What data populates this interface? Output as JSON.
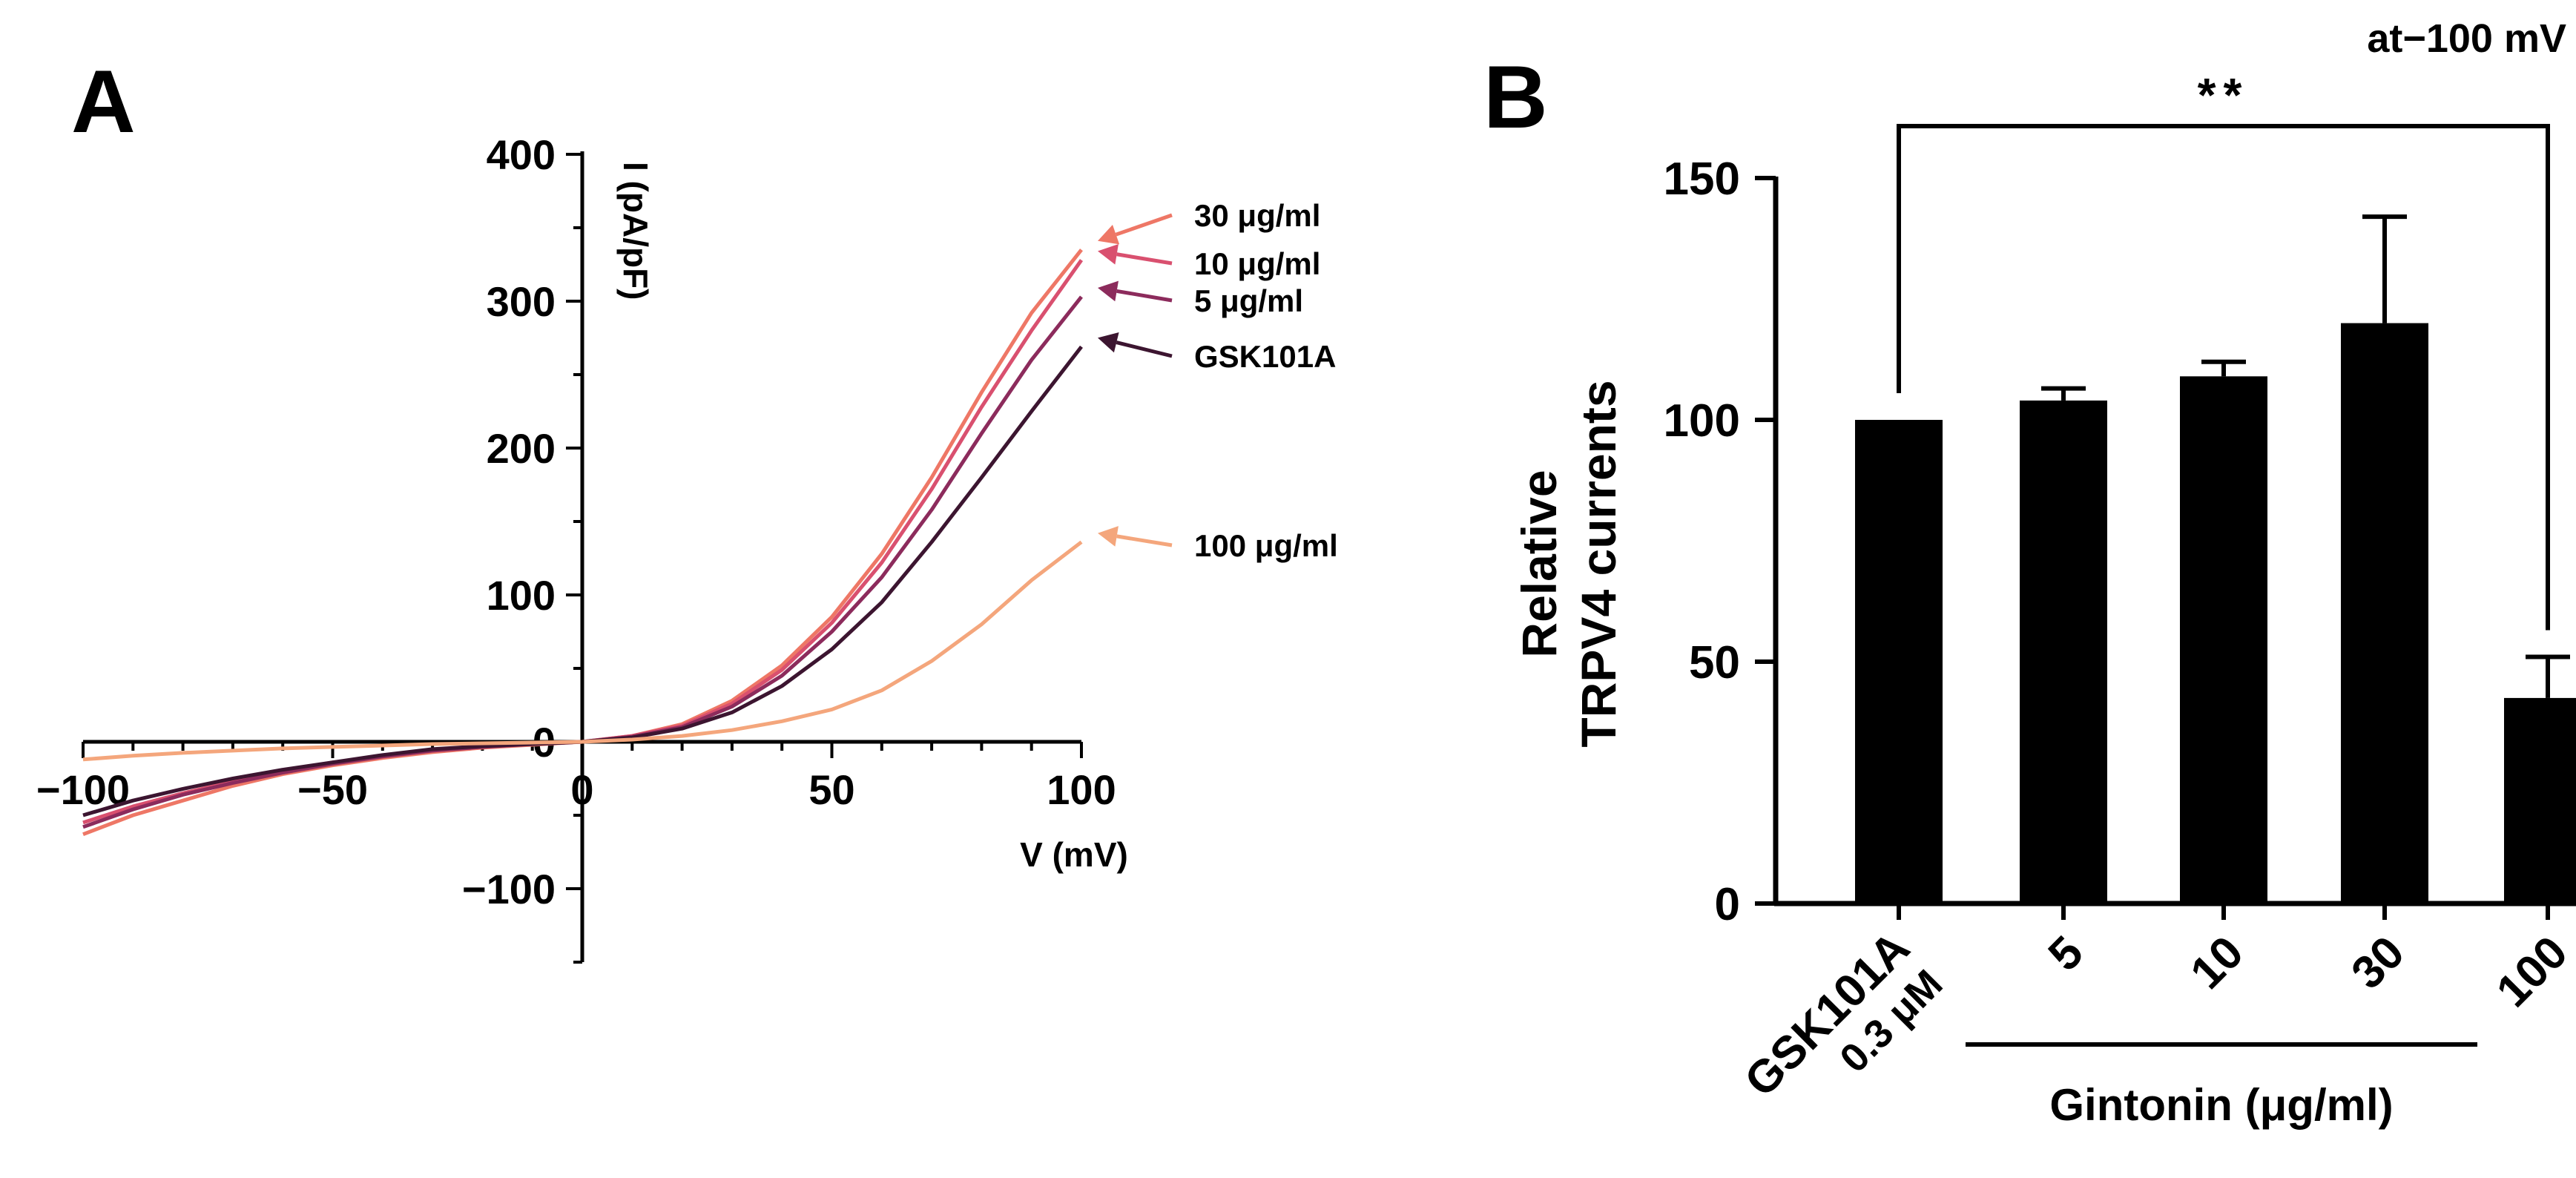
{
  "chart_data": [
    {
      "panel": "A",
      "type": "line",
      "title": "",
      "xlabel": "V (mV)",
      "ylabel": "I (pA/pF)",
      "xlim": [
        -100,
        100
      ],
      "ylim": [
        -150,
        400
      ],
      "xticks": [
        -100,
        -50,
        0,
        50,
        100
      ],
      "xtick_labels": [
        "−100",
        "−50",
        "0",
        "50",
        "100"
      ],
      "yticks": [
        -100,
        0,
        100,
        200,
        300,
        400
      ],
      "ytick_labels": [
        "−100",
        "0",
        "100",
        "200",
        "300",
        "400"
      ],
      "grid": false,
      "legend_placement": "right of curve ends",
      "x": [
        -100,
        -90,
        -80,
        -70,
        -60,
        -50,
        -40,
        -30,
        -20,
        -10,
        0,
        10,
        20,
        30,
        40,
        50,
        60,
        70,
        80,
        90,
        100
      ],
      "series": [
        {
          "name": "30 μg/ml",
          "color": "#ee7766",
          "values": [
            -63,
            -50,
            -40,
            -30,
            -22,
            -16,
            -11,
            -7,
            -4,
            -2,
            0,
            4,
            12,
            28,
            52,
            85,
            128,
            180,
            238,
            292,
            335
          ]
        },
        {
          "name": "10 μg/ml",
          "color": "#d9506f",
          "values": [
            -55,
            -44,
            -35,
            -27,
            -20,
            -14,
            -10,
            -6,
            -3.5,
            -1.5,
            0,
            4,
            11,
            26,
            49,
            81,
            122,
            172,
            228,
            280,
            328
          ]
        },
        {
          "name": "5 μg/ml",
          "color": "#8c2b5c",
          "values": [
            -58,
            -46,
            -36,
            -28,
            -21,
            -15,
            -10,
            -6,
            -3.5,
            -1.5,
            0,
            3.5,
            10,
            24,
            45,
            75,
            112,
            158,
            210,
            260,
            303
          ]
        },
        {
          "name": "GSK101A",
          "color": "#3c1530",
          "values": [
            -50,
            -40,
            -32,
            -25,
            -19,
            -14,
            -9,
            -5,
            -3,
            -1.5,
            0,
            3,
            9,
            20,
            38,
            63,
            95,
            136,
            180,
            225,
            269
          ]
        },
        {
          "name": "100 μg/ml",
          "color": "#f4a67c",
          "values": [
            -12,
            -9.5,
            -7.5,
            -6,
            -4.5,
            -3.5,
            -2.5,
            -1.5,
            -1,
            -0.5,
            0,
            1.5,
            4,
            8,
            14,
            22,
            35,
            55,
            80,
            110,
            136
          ]
        }
      ]
    },
    {
      "panel": "B",
      "type": "bar",
      "title": "at−100 mV",
      "xlabel": "Gintonin (μg/ml)",
      "ylabel_lines": [
        "Relative",
        "TRPV4 currents"
      ],
      "categories": [
        {
          "lines": [
            "GSK101A",
            "0.3 μM"
          ]
        },
        {
          "lines": [
            "5"
          ]
        },
        {
          "lines": [
            "10"
          ]
        },
        {
          "lines": [
            "30"
          ]
        },
        {
          "lines": [
            "100"
          ]
        }
      ],
      "values": [
        100,
        104,
        109,
        120,
        42.5
      ],
      "errors": [
        0,
        2.5,
        3,
        22,
        8.5
      ],
      "bar_color": "#000000",
      "ylim": [
        0,
        150
      ],
      "yticks": [
        0,
        50,
        100,
        150
      ],
      "ytick_labels": [
        "0",
        "50",
        "100",
        "150"
      ],
      "grid": false,
      "significance": {
        "between": [
          0,
          4
        ],
        "label": "**"
      }
    }
  ]
}
